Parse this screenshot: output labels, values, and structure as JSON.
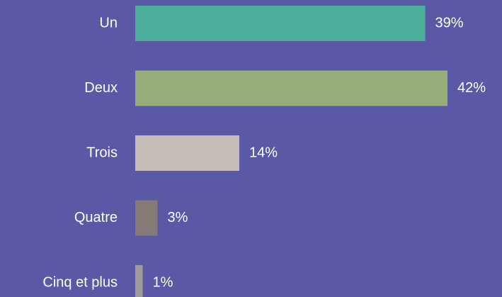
{
  "chart_data": {
    "type": "bar",
    "orientation": "horizontal",
    "categories": [
      "Un",
      "Deux",
      "Trois",
      "Quatre",
      "Cinq et plus"
    ],
    "values": [
      39,
      42,
      14,
      3,
      1
    ],
    "value_labels": [
      "39%",
      "42%",
      "14%",
      "3%",
      "1%"
    ],
    "colors": [
      "#4aae9b",
      "#97ad78",
      "#c5bbb5",
      "#857a76",
      "#a09a9c"
    ]
  }
}
